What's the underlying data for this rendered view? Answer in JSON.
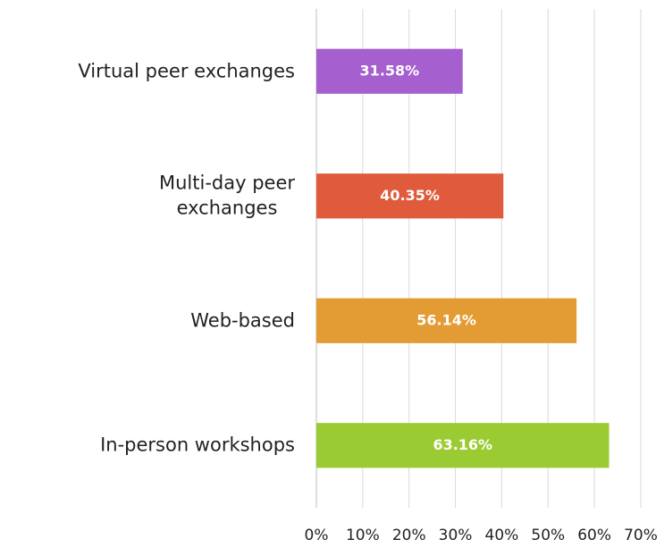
{
  "chart_data": {
    "type": "hbar",
    "categories": [
      "Virtual peer exchanges",
      "Multi-day peer\nexchanges",
      "Web-based",
      "In-person workshops"
    ],
    "values": [
      31.58,
      40.35,
      56.14,
      63.16
    ],
    "value_labels": [
      "31.58%",
      "40.35%",
      "56.14%",
      "63.16%"
    ],
    "colors": [
      "#a55fce",
      "#df5b3c",
      "#e39b34",
      "#9bcb33"
    ],
    "xlim": [
      0,
      70
    ],
    "xticks": [
      {
        "value": 0,
        "label": "0%"
      },
      {
        "value": 10,
        "label": "10%"
      },
      {
        "value": 20,
        "label": "20%"
      },
      {
        "value": 30,
        "label": "30%"
      },
      {
        "value": 40,
        "label": "40%"
      },
      {
        "value": 50,
        "label": "50%"
      },
      {
        "value": 60,
        "label": "60%"
      },
      {
        "value": 70,
        "label": "70%"
      }
    ],
    "grid": true
  }
}
